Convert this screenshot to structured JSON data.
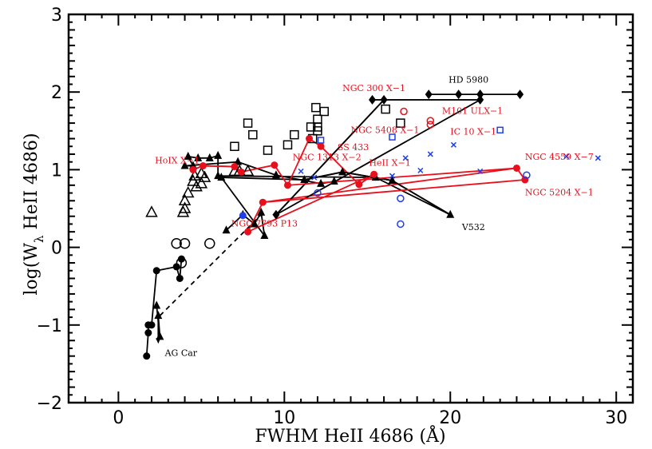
{
  "chart_data": {
    "type": "scatter",
    "xlabel": "FWHM HeII 4686 (Å)",
    "ylabel_main": "log(W",
    "ylabel_sub": "λ",
    "ylabel_rest": " HeII 4686)",
    "xlim": [
      -3,
      31
    ],
    "ylim": [
      -2,
      3
    ],
    "xticks": [
      0,
      10,
      20,
      30
    ],
    "yticks": [
      -2,
      -1,
      0,
      1,
      2,
      3
    ],
    "grid": false,
    "colors": {
      "black": "#000000",
      "red": "#e8101c",
      "blue": "#1f3fe8"
    },
    "series": [
      {
        "marker": "triangle-filled",
        "color": "#000000",
        "connected": true,
        "points": [
          [
            2.3,
            -0.75
          ],
          [
            2.5,
            -1.15
          ],
          [
            2.4,
            -0.88
          ]
        ]
      },
      {
        "marker": "triangle-filled",
        "color": "#000000",
        "connected": true,
        "points": [
          [
            6.5,
            0.22
          ],
          [
            7.5,
            0.42
          ],
          [
            8.2,
            0.3
          ],
          [
            8.6,
            0.45
          ],
          [
            8.8,
            0.15
          ],
          [
            6.2,
            0.9
          ],
          [
            11.2,
            0.87
          ],
          [
            13.5,
            0.97
          ],
          [
            16.5,
            0.86
          ],
          [
            20,
            0.42
          ],
          [
            15.5,
            0.9
          ],
          [
            6.0,
            0.92
          ],
          [
            6.0,
            1.18
          ],
          [
            5.5,
            1.15
          ],
          [
            4.8,
            1.15
          ],
          [
            4.2,
            1.17
          ],
          [
            4.5,
            1.05
          ],
          [
            4.0,
            1.05
          ],
          [
            7.2,
            1.1
          ],
          [
            9.5,
            0.93
          ],
          [
            12.2,
            0.82
          ],
          [
            13.0,
            0.85
          ]
        ]
      },
      {
        "marker": "triangle-open",
        "color": "#000000",
        "connected": false,
        "points": [
          [
            2.0,
            0.45
          ],
          [
            4.0,
            0.5
          ],
          [
            3.9,
            0.45
          ],
          [
            4.0,
            0.6
          ],
          [
            4.2,
            0.7
          ],
          [
            4.5,
            0.85
          ],
          [
            4.7,
            0.78
          ],
          [
            5.0,
            0.82
          ],
          [
            5.2,
            0.9
          ],
          [
            5.0,
            0.95
          ],
          [
            4.6,
            0.92
          ],
          [
            7.0,
            0.98
          ],
          [
            7.3,
            0.98
          ],
          [
            7.8,
            0.98
          ]
        ]
      },
      {
        "marker": "circle-filled",
        "color": "#000000",
        "connected": true,
        "points": [
          [
            1.7,
            -1.4
          ],
          [
            1.8,
            -1.1
          ],
          [
            1.8,
            -1.0
          ],
          [
            2.0,
            -1.0
          ],
          [
            2.3,
            -0.3
          ],
          [
            3.5,
            -0.25
          ],
          [
            3.7,
            -0.4
          ],
          [
            3.8,
            -0.15
          ]
        ]
      },
      {
        "marker": "circle-open",
        "color": "#000000",
        "connected": false,
        "points": [
          [
            3.5,
            0.05
          ],
          [
            4.0,
            0.05
          ],
          [
            3.8,
            -0.2
          ],
          [
            5.5,
            0.05
          ]
        ]
      },
      {
        "marker": "square-open",
        "color": "#000000",
        "connected": false,
        "points": [
          [
            7.0,
            1.3
          ],
          [
            7.8,
            1.6
          ],
          [
            8.1,
            1.45
          ],
          [
            9.0,
            1.25
          ],
          [
            10.2,
            1.32
          ],
          [
            10.6,
            1.45
          ],
          [
            11.6,
            1.55
          ],
          [
            11.7,
            1.4
          ],
          [
            11.9,
            1.8
          ],
          [
            12.0,
            1.65
          ],
          [
            12.0,
            1.55
          ],
          [
            12.0,
            1.5
          ],
          [
            12.4,
            1.75
          ],
          [
            16.1,
            1.78
          ],
          [
            17.0,
            1.6
          ]
        ]
      },
      {
        "marker": "diamond-filled",
        "color": "#000000",
        "connected": true,
        "points": [
          [
            9.5,
            0.42
          ],
          [
            16.0,
            1.9
          ],
          [
            15.3,
            1.9
          ],
          [
            21.8,
            1.9
          ],
          [
            21.8,
            1.97
          ],
          [
            18.7,
            1.97
          ],
          [
            20.5,
            1.97
          ],
          [
            21.8,
            1.97
          ],
          [
            24.2,
            1.97
          ]
        ]
      },
      {
        "marker": "circle-filled",
        "color": "#e8101c",
        "connected": true,
        "points": [
          [
            4.5,
            1.0
          ],
          [
            5.1,
            1.05
          ],
          [
            7.0,
            1.04
          ],
          [
            7.4,
            0.97
          ],
          [
            9.4,
            1.06
          ],
          [
            10.2,
            0.8
          ],
          [
            11.5,
            1.4
          ],
          [
            12.2,
            1.3
          ],
          [
            14.5,
            0.81
          ],
          [
            15.4,
            0.94
          ],
          [
            7.8,
            0.2
          ],
          [
            8.7,
            0.58
          ],
          [
            24.0,
            1.02
          ],
          [
            24.5,
            0.87
          ]
        ]
      },
      {
        "marker": "circle-open",
        "color": "#e8101c",
        "connected": false,
        "points": [
          [
            17.2,
            1.75
          ],
          [
            18.8,
            1.63
          ],
          [
            18.8,
            1.58
          ]
        ]
      },
      {
        "marker": "circle-filled",
        "color": "#1f3fe8",
        "connected": false,
        "points": [
          [
            7.5,
            0.41
          ]
        ]
      },
      {
        "marker": "circle-open",
        "color": "#1f3fe8",
        "connected": false,
        "points": [
          [
            12.0,
            0.7
          ],
          [
            17.0,
            0.63
          ],
          [
            17.0,
            0.3
          ],
          [
            24.6,
            0.93
          ]
        ]
      },
      {
        "marker": "square-open",
        "color": "#1f3fe8",
        "connected": false,
        "points": [
          [
            12.2,
            1.38
          ],
          [
            16.5,
            1.42
          ],
          [
            23.0,
            1.51
          ]
        ]
      },
      {
        "marker": "x",
        "color": "#1f3fe8",
        "connected": false,
        "points": [
          [
            11.0,
            0.98
          ],
          [
            11.8,
            0.9
          ],
          [
            16.5,
            0.92
          ],
          [
            17.3,
            1.15
          ],
          [
            18.2,
            0.99
          ],
          [
            18.8,
            1.2
          ],
          [
            20.2,
            1.32
          ],
          [
            21.8,
            0.98
          ],
          [
            27.0,
            1.17
          ],
          [
            28.9,
            1.15
          ]
        ]
      }
    ],
    "lines": [
      {
        "color": "#000000",
        "dashed": false,
        "points": [
          [
            9.5,
            0.42
          ],
          [
            16.0,
            1.9
          ]
        ]
      },
      {
        "color": "#000000",
        "dashed": false,
        "points": [
          [
            9.5,
            0.42
          ],
          [
            21.8,
            1.9
          ]
        ]
      },
      {
        "color": "#000000",
        "dashed": false,
        "points": [
          [
            11.2,
            0.87
          ],
          [
            13.5,
            0.97
          ],
          [
            16.5,
            0.86
          ],
          [
            20.0,
            0.42
          ]
        ]
      },
      {
        "color": "#000000",
        "dashed": true,
        "points": [
          [
            2.5,
            -0.88
          ],
          [
            8.6,
            0.42
          ]
        ]
      },
      {
        "color": "#e8101c",
        "dashed": false,
        "points": [
          [
            4.5,
            1.0
          ],
          [
            5.1,
            1.05
          ],
          [
            7.0,
            1.04
          ],
          [
            7.4,
            0.97
          ]
        ]
      },
      {
        "color": "#e8101c",
        "dashed": false,
        "points": [
          [
            10.2,
            0.8
          ],
          [
            24.0,
            1.02
          ]
        ]
      },
      {
        "color": "#e8101c",
        "dashed": false,
        "points": [
          [
            8.7,
            0.58
          ],
          [
            24.5,
            0.87
          ]
        ]
      },
      {
        "color": "#e8101c",
        "dashed": false,
        "points": [
          [
            14.5,
            0.81
          ],
          [
            15.4,
            0.94
          ]
        ]
      }
    ],
    "annotations": [
      {
        "text": "HD 5980",
        "x": 19.9,
        "y": 2.12,
        "color": "#000000"
      },
      {
        "text": "NGC 300 X−1",
        "x": 13.5,
        "y": 2.01,
        "color": "#e8101c"
      },
      {
        "text": "M101 ULX−1",
        "x": 19.5,
        "y": 1.72,
        "color": "#e8101c"
      },
      {
        "text": "NGC 5408 X−1",
        "x": 14.0,
        "y": 1.47,
        "color": "#e8101c"
      },
      {
        "text": "IC 10 X−1",
        "x": 20.0,
        "y": 1.45,
        "color": "#e8101c"
      },
      {
        "text": "SS 433",
        "x": 13.2,
        "y": 1.25,
        "color": "#e8101c"
      },
      {
        "text": "NGC 1313 X−2",
        "x": 10.5,
        "y": 1.12,
        "color": "#e8101c"
      },
      {
        "text": "HoIX X−1",
        "x": 2.2,
        "y": 1.08,
        "color": "#e8101c"
      },
      {
        "text": "HeII X−1",
        "x": 15.1,
        "y": 1.05,
        "color": "#e8101c"
      },
      {
        "text": "NGC 4559 X−7",
        "x": 24.5,
        "y": 1.13,
        "color": "#e8101c"
      },
      {
        "text": "NGC 5204 X−1",
        "x": 24.5,
        "y": 0.67,
        "color": "#e8101c"
      },
      {
        "text": "NGC 7793 P13",
        "x": 6.8,
        "y": 0.27,
        "color": "#e8101c"
      },
      {
        "text": "V532",
        "x": 20.7,
        "y": 0.22,
        "color": "#000000"
      },
      {
        "text": "AG Car",
        "x": 2.8,
        "y": -1.4,
        "color": "#000000"
      }
    ]
  }
}
